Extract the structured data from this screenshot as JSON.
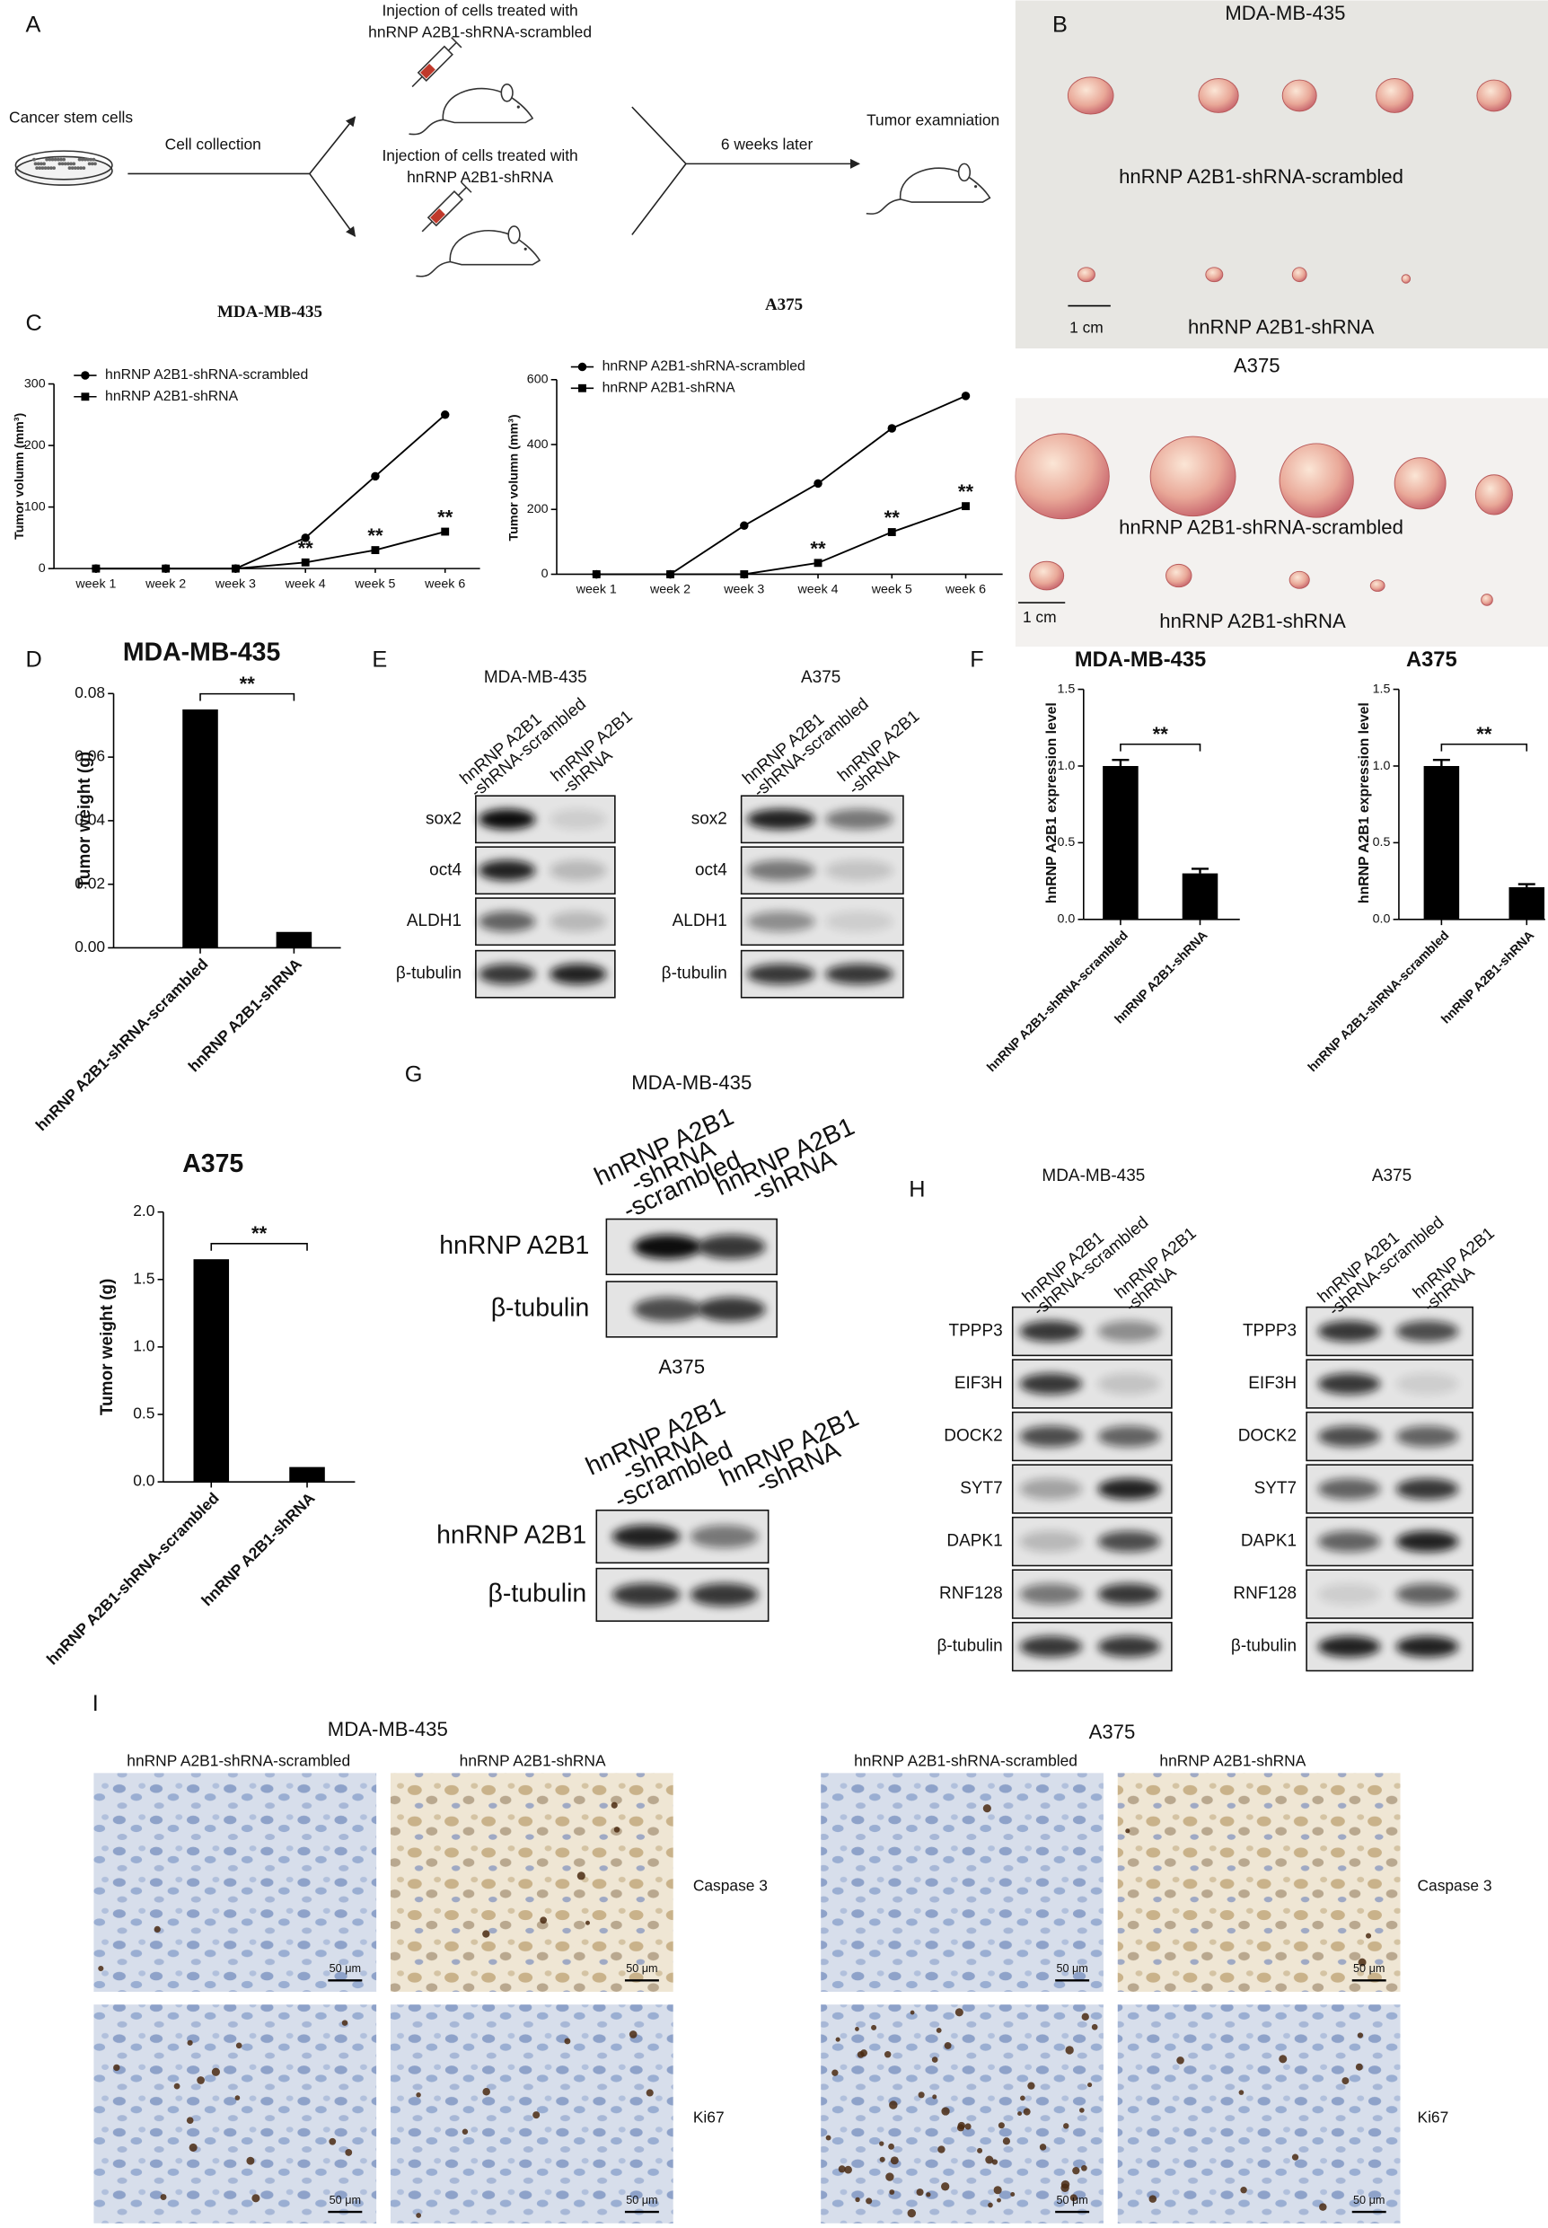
{
  "panel_A": {
    "label": "A",
    "source": "Cancer stem cells",
    "step1": "Cell collection",
    "injection_scrambled": [
      "Injection of  cells treated with",
      "hnRNP A2B1-shRNA-scrambled"
    ],
    "injection_shrna": [
      "Injection of  cells treated with",
      "hnRNP A2B1-shRNA"
    ],
    "step2": "6 weeks later",
    "result": "Tumor examniation"
  },
  "panel_B": {
    "label": "B",
    "photos": [
      {
        "title": "MDA-MB-435",
        "top_group": "hnRNP A2B1-shRNA-scrambled",
        "bottom_group": "hnRNP A2B1-shRNA",
        "scale_bar": "1 cm"
      },
      {
        "title": "A375",
        "top_group": "hnRNP A2B1-shRNA-scrambled",
        "bottom_group": "hnRNP A2B1-shRNA",
        "scale_bar": "1 cm"
      }
    ]
  },
  "panel_labels": {
    "C": "C",
    "D": "D",
    "F": "F"
  },
  "panel_E": {
    "label": "E",
    "blots": [
      {
        "title": "MDA-MB-435",
        "lanes": [
          [
            "hnRNP A2B1",
            "-shRNA-scrambled"
          ],
          [
            "hnRNP A2B1",
            "-shRNA"
          ]
        ],
        "rows": [
          "sox2",
          "oct4",
          "ALDH1",
          "β-tubulin"
        ]
      },
      {
        "title": "A375",
        "lanes": [
          [
            "hnRNP A2B1",
            "-shRNA-scrambled"
          ],
          [
            "hnRNP A2B1",
            "-shRNA"
          ]
        ],
        "rows": [
          "sox2",
          "oct4",
          "ALDH1",
          "β-tubulin"
        ]
      }
    ]
  },
  "panel_G": {
    "label": "G",
    "blots": [
      {
        "title": "MDA-MB-435",
        "lanes": [
          [
            "hnRNP A2B1",
            "-shRNA",
            "-scrambled"
          ],
          [
            "hnRNP A2B1",
            "-shRNA"
          ]
        ],
        "rows": [
          "hnRNP A2B1",
          "β-tubulin"
        ]
      },
      {
        "title": "A375",
        "lanes": [
          [
            "hnRNP A2B1",
            "-shRNA",
            "-scrambled"
          ],
          [
            "hnRNP A2B1",
            "-shRNA"
          ]
        ],
        "rows": [
          "hnRNP A2B1",
          "β-tubulin"
        ]
      }
    ]
  },
  "panel_H": {
    "label": "H",
    "blots": [
      {
        "title": "MDA-MB-435",
        "lanes": [
          [
            "hnRNP A2B1",
            "-shRNA-scrambled"
          ],
          [
            "hnRNP A2B1",
            "-shRNA"
          ]
        ],
        "rows": [
          "TPPP3",
          "EIF3H",
          "DOCK2",
          "SYT7",
          "DAPK1",
          "RNF128",
          "β-tubulin"
        ]
      },
      {
        "title": "A375",
        "lanes": [
          [
            "hnRNP A2B1",
            "-shRNA-scrambled"
          ],
          [
            "hnRNP A2B1",
            "-shRNA"
          ]
        ],
        "rows": [
          "TPPP3",
          "EIF3H",
          "DOCK2",
          "SYT7",
          "DAPK1",
          "RNF128",
          "β-tubulin"
        ]
      }
    ]
  },
  "panel_I": {
    "label": "I",
    "groups": [
      {
        "title": "MDA-MB-435",
        "columns": [
          "hnRNP A2B1-shRNA-scrambled",
          "hnRNP A2B1-shRNA"
        ],
        "rows": [
          "Caspase 3",
          "Ki67"
        ],
        "scale_bars": [
          "50 μm",
          "50 μm",
          "50 μm",
          "50 μm"
        ]
      },
      {
        "title": "A375",
        "columns": [
          "hnRNP A2B1-shRNA-scrambled",
          "hnRNP A2B1-shRNA"
        ],
        "rows": [
          "Caspase 3",
          "Ki67"
        ],
        "scale_bars": [
          "50 μm",
          "50 μm",
          "50 μm",
          "50 μm"
        ]
      }
    ]
  },
  "chart_data": [
    {
      "type": "line",
      "title": "MDA-MB-435",
      "ylabel": "Tumor volumn (mm³)",
      "categories": [
        "week 1",
        "week 2",
        "week 3",
        "week 4",
        "week 5",
        "week 6"
      ],
      "series": [
        {
          "name": "hnRNP A2B1-shRNA-scrambled",
          "color": "#000000",
          "marker": "circle",
          "values": [
            0,
            0,
            0,
            50,
            150,
            250
          ]
        },
        {
          "name": "hnRNP A2B1-shRNA",
          "color": "#000000",
          "marker": "square",
          "values": [
            0,
            0,
            0,
            10,
            30,
            60
          ]
        }
      ],
      "ylim": [
        0,
        300
      ],
      "yticks": [
        0,
        100,
        200,
        300
      ],
      "annotations": [
        {
          "text": "**",
          "x": "week 4"
        },
        {
          "text": "**",
          "x": "week 5"
        },
        {
          "text": "**",
          "x": "week 6"
        }
      ]
    },
    {
      "type": "line",
      "title": "A375",
      "ylabel": "Tumor volumn (mm³)",
      "categories": [
        "week 1",
        "week 2",
        "week 3",
        "week 4",
        "week 5",
        "week 6"
      ],
      "series": [
        {
          "name": "hnRNP A2B1-shRNA-scrambled",
          "color": "#000000",
          "marker": "circle",
          "values": [
            0,
            0,
            150,
            280,
            450,
            550
          ]
        },
        {
          "name": "hnRNP A2B1-shRNA",
          "color": "#000000",
          "marker": "square",
          "values": [
            0,
            0,
            0,
            35,
            130,
            210
          ]
        }
      ],
      "ylim": [
        0,
        600
      ],
      "yticks": [
        0,
        200,
        400,
        600
      ],
      "annotations": [
        {
          "text": "**",
          "x": "week 4"
        },
        {
          "text": "**",
          "x": "week 5"
        },
        {
          "text": "**",
          "x": "week 6"
        }
      ]
    },
    {
      "type": "bar",
      "title": "MDA-MB-435",
      "ylabel": "Tumor weight (g)",
      "categories": [
        "hnRNP A2B1-shRNA-scrambled",
        "hnRNP A2B1-shRNA"
      ],
      "values": [
        0.075,
        0.005
      ],
      "color": "#000000",
      "ylim": [
        0,
        0.08
      ],
      "yticks": [
        {
          "value": 0,
          "label": "0.00"
        },
        {
          "value": 0.02,
          "label": "0.02"
        },
        {
          "value": 0.04,
          "label": "0.04"
        },
        {
          "value": 0.06,
          "label": "0.06"
        },
        {
          "value": 0.08,
          "label": "0.08"
        }
      ],
      "significance": "**"
    },
    {
      "type": "bar",
      "title": "A375",
      "ylabel": "Tumor weight (g)",
      "categories": [
        "hnRNP A2B1-shRNA-scrambled",
        "hnRNP A2B1-shRNA"
      ],
      "values": [
        1.65,
        0.11
      ],
      "color": "#000000",
      "ylim": [
        0,
        2
      ],
      "yticks": [
        {
          "value": 0,
          "label": "0.0"
        },
        {
          "value": 0.5,
          "label": "0.5"
        },
        {
          "value": 1,
          "label": "1.0"
        },
        {
          "value": 1.5,
          "label": "1.5"
        },
        {
          "value": 2,
          "label": "2.0"
        }
      ],
      "significance": "**"
    },
    {
      "type": "bar",
      "title": "MDA-MB-435",
      "ylabel": "hnRNP A2B1 expression level",
      "categories": [
        "hnRNP A2B1-shRNA-scrambled",
        "hnRNP A2B1-shRNA"
      ],
      "values": [
        1.0,
        0.3
      ],
      "errors": [
        0.04,
        0.03
      ],
      "color": "#000000",
      "ylim": [
        0,
        1.5
      ],
      "yticks": [
        {
          "value": 0,
          "label": "0.0"
        },
        {
          "value": 0.5,
          "label": "0.5"
        },
        {
          "value": 1,
          "label": "1.0"
        },
        {
          "value": 1.5,
          "label": "1.5"
        }
      ],
      "significance": "**"
    },
    {
      "type": "bar",
      "title": "A375",
      "ylabel": "hnRNP A2B1 expression level",
      "categories": [
        "hnRNP A2B1-shRNA-scrambled",
        "hnRNP A2B1-shRNA"
      ],
      "values": [
        1.0,
        0.21
      ],
      "errors": [
        0.04,
        0.02
      ],
      "color": "#000000",
      "ylim": [
        0,
        1.5
      ],
      "yticks": [
        {
          "value": 0,
          "label": "0.0"
        },
        {
          "value": 0.5,
          "label": "0.5"
        },
        {
          "value": 1,
          "label": "1.0"
        },
        {
          "value": 1.5,
          "label": "1.5"
        }
      ],
      "significance": "**"
    }
  ]
}
